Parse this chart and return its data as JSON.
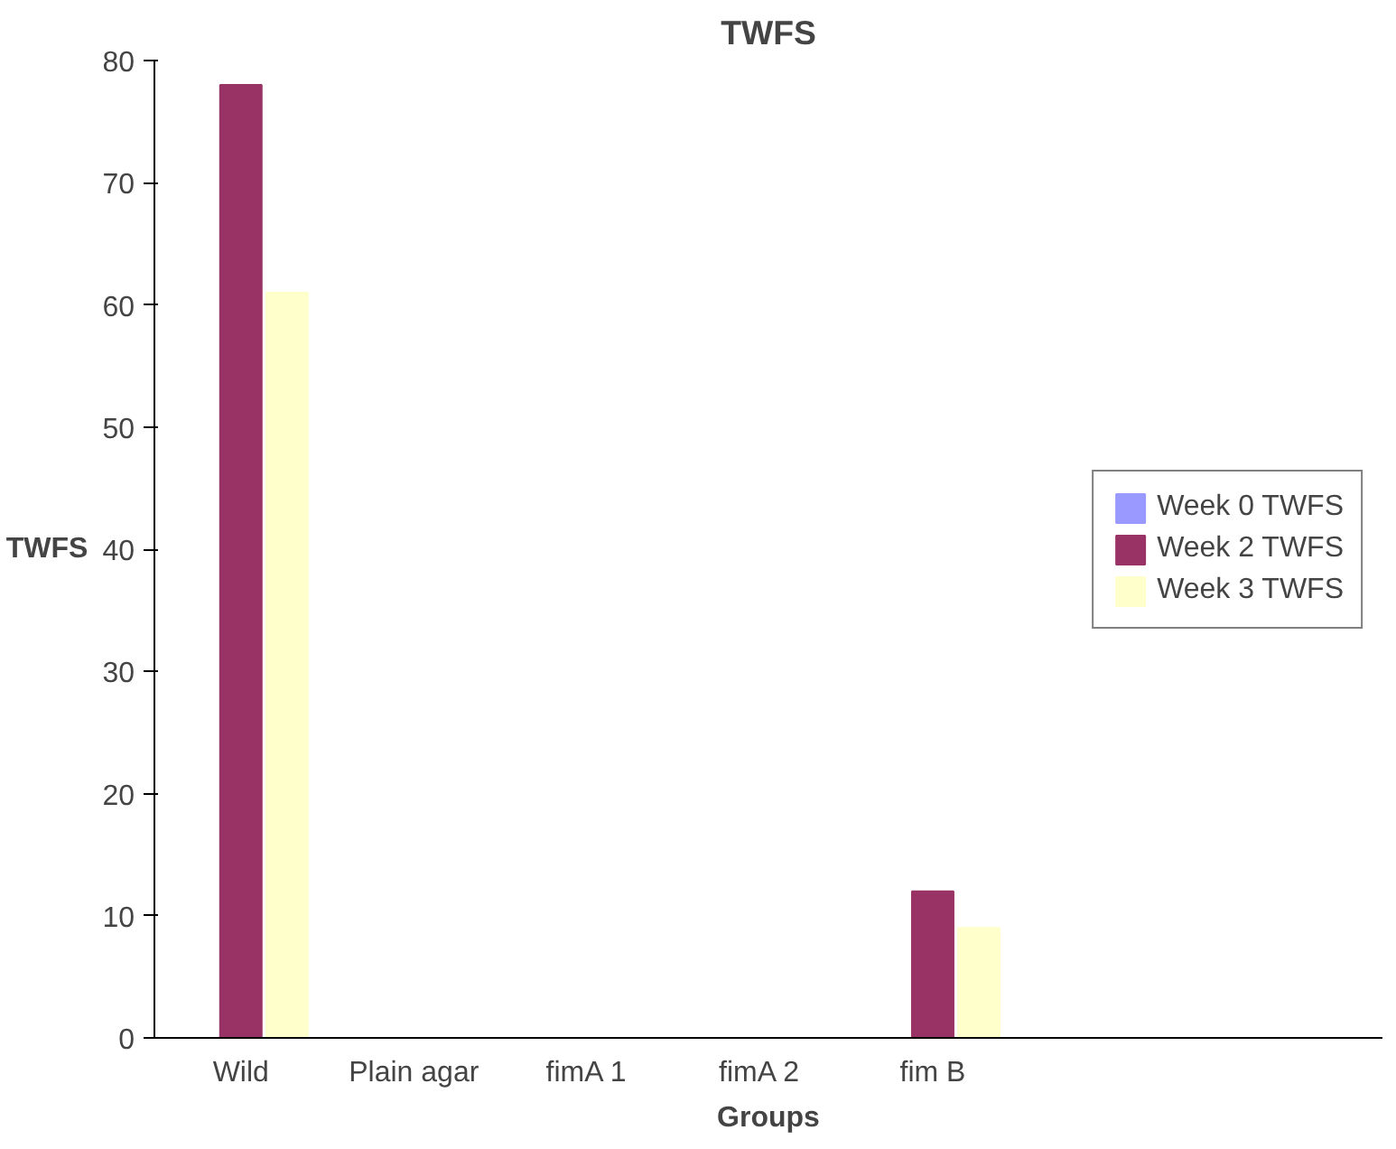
{
  "chart_data": {
    "type": "bar",
    "title": "TWFS",
    "xlabel": "Groups",
    "ylabel": "TWFS",
    "categories": [
      "Wild",
      "Plain agar",
      "fimA 1",
      "fimA 2",
      "fim B"
    ],
    "series": [
      {
        "name": "Week 0 TWFS",
        "color": "#9999ff",
        "values": [
          0,
          0,
          0,
          0,
          0
        ]
      },
      {
        "name": "Week 2 TWFS",
        "color": "#993366",
        "values": [
          78,
          0,
          0,
          0,
          12
        ]
      },
      {
        "name": "Week 3 TWFS",
        "color": "#ffffcc",
        "values": [
          61,
          0,
          0,
          0,
          9
        ]
      }
    ],
    "ylim": [
      0,
      80
    ],
    "yticks": [
      0,
      10,
      20,
      30,
      40,
      50,
      60,
      70,
      80
    ],
    "grid": false,
    "legend": "right"
  }
}
